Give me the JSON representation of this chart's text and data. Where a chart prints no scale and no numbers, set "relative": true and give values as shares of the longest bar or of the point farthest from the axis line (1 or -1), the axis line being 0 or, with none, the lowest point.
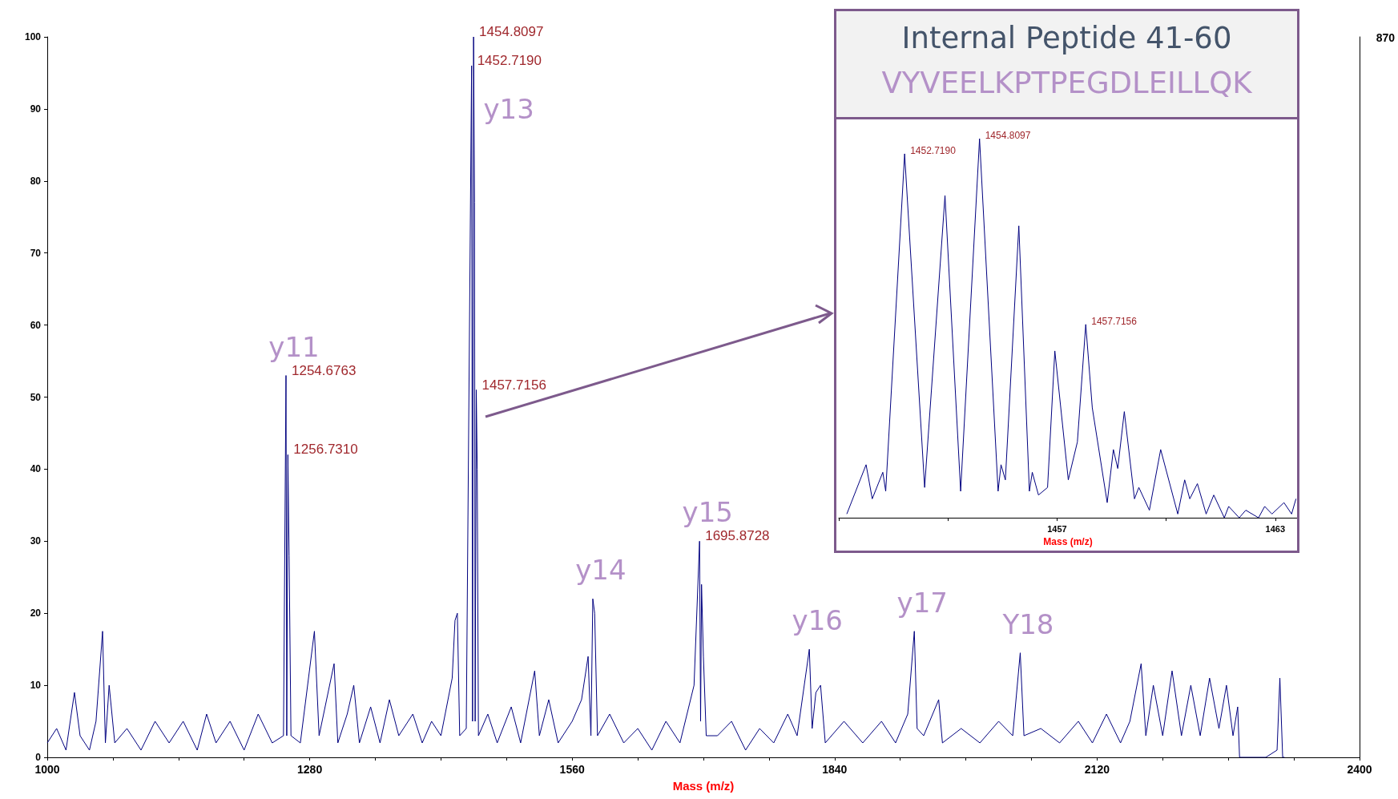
{
  "chart_data": [
    {
      "type": "line",
      "xlabel": "Mass (m/z)",
      "color": "#00007f",
      "marker": "none",
      "grid": false,
      "xlim": [
        1000,
        2400
      ],
      "ylim": [
        0,
        100
      ],
      "xticks": [
        1000,
        {
          "value": 1070,
          "label": null
        },
        {
          "value": 1140,
          "label": null
        },
        {
          "value": 1210,
          "label": null
        },
        1280,
        {
          "value": 1350,
          "label": null
        },
        {
          "value": 1420,
          "label": null
        },
        {
          "value": 1490,
          "label": null
        },
        1560,
        {
          "value": 1630,
          "label": null
        },
        {
          "value": 1700,
          "label": null
        },
        {
          "value": 1770,
          "label": null
        },
        1840,
        {
          "value": 1910,
          "label": null
        },
        {
          "value": 1980,
          "label": null
        },
        {
          "value": 2050,
          "label": null
        },
        2120,
        {
          "value": 2190,
          "label": null
        },
        {
          "value": 2260,
          "label": null
        },
        {
          "value": 2330,
          "label": null
        },
        2400
      ],
      "yticks": [
        0,
        10,
        20,
        30,
        40,
        50,
        60,
        70,
        80,
        90,
        100
      ],
      "x": [
        1000,
        1010,
        1020,
        1029,
        1035,
        1045,
        1052,
        1059,
        1062,
        1066,
        1072,
        1085,
        1100,
        1115,
        1130,
        1145,
        1160,
        1170,
        1180,
        1195,
        1210,
        1225,
        1240,
        1252,
        1254.7,
        1255.5,
        1256.7,
        1258,
        1260,
        1270,
        1285,
        1290,
        1306,
        1310,
        1320,
        1327,
        1333,
        1345,
        1355,
        1365,
        1375,
        1390,
        1400,
        1410,
        1420,
        1432,
        1435,
        1437.5,
        1440,
        1447,
        1452.7,
        1453.7,
        1454.8,
        1455.8,
        1456.5,
        1457.7,
        1458.7,
        1460,
        1470,
        1480,
        1495,
        1505,
        1520,
        1525,
        1535,
        1545,
        1560,
        1570,
        1577,
        1580,
        1582,
        1584,
        1587,
        1600,
        1615,
        1630,
        1645,
        1660,
        1675,
        1690,
        1695.9,
        1697,
        1698,
        1700,
        1703,
        1715,
        1730,
        1745,
        1760,
        1775,
        1790,
        1800,
        1813,
        1816,
        1820,
        1825,
        1830,
        1850,
        1870,
        1890,
        1905,
        1918,
        1925,
        1928,
        1935,
        1951,
        1955,
        1975,
        1995,
        2015,
        2030,
        2038,
        2042,
        2060,
        2080,
        2100,
        2115,
        2130,
        2145,
        2155,
        2167,
        2172,
        2180,
        2190,
        2200,
        2210,
        2220,
        2230,
        2240,
        2250,
        2258,
        2265,
        2270,
        2272,
        2300,
        2312,
        2315,
        2318,
        2320
      ],
      "values": [
        2,
        4,
        1,
        9,
        3,
        1,
        5,
        17.5,
        2,
        10,
        2,
        4,
        1,
        5,
        2,
        5,
        1,
        6,
        2,
        5,
        1,
        6,
        2,
        3,
        53,
        3,
        42,
        28,
        3,
        2,
        17.5,
        3,
        13,
        2,
        6,
        10,
        2,
        7,
        2,
        8,
        3,
        6,
        2,
        5,
        3,
        11,
        19,
        20,
        3,
        4,
        96,
        5,
        100,
        77,
        5,
        51,
        40,
        3,
        6,
        2,
        7,
        2,
        12,
        3,
        8,
        2,
        5,
        8,
        14,
        3,
        22,
        20,
        3,
        6,
        2,
        4,
        1,
        5,
        2,
        10,
        30,
        5,
        24,
        14,
        3,
        3,
        5,
        1,
        4,
        2,
        6,
        3,
        15,
        4,
        9,
        10,
        2,
        5,
        2,
        5,
        2,
        6,
        17.5,
        4,
        3,
        8,
        2,
        4,
        2,
        5,
        3,
        14.5,
        3,
        4,
        2,
        5,
        2,
        6,
        2,
        5,
        13,
        3,
        10,
        3,
        12,
        3,
        10,
        3,
        11,
        4,
        10,
        3,
        7,
        0,
        0,
        1,
        11,
        0,
        0
      ],
      "annotations": [
        {
          "text": "1454.8097",
          "x": 1454.8,
          "y": 100
        },
        {
          "text": "1452.7190",
          "x": 1452.7,
          "y": 96
        },
        {
          "text": "1457.7156",
          "x": 1457.7,
          "y": 51
        },
        {
          "text": "1254.6763",
          "x": 1254.7,
          "y": 53
        },
        {
          "text": "1256.7310",
          "x": 1256.7,
          "y": 42
        },
        {
          "text": "1695.8728",
          "x": 1695.9,
          "y": 30
        },
        {
          "text": "y11",
          "x": 1254.7,
          "y": 53
        },
        {
          "text": "y13",
          "x": 1454.8,
          "y": 100
        },
        {
          "text": "y14",
          "x": 1582,
          "y": 22
        },
        {
          "text": "y15",
          "x": 1695.9,
          "y": 30
        },
        {
          "text": "y16",
          "x": 1813,
          "y": 15
        },
        {
          "text": "y17",
          "x": 1925,
          "y": 17.5
        },
        {
          "text": "Y18",
          "x": 2038,
          "y": 14.5
        },
        "870"
      ]
    },
    {
      "type": "line",
      "title": "Internal Peptide 41-60",
      "subtitle": "VYVEELKPTPEGDLEILLQK",
      "xlabel": "Mass (m/z)",
      "color": "#00007f",
      "marker": "none",
      "grid": false,
      "relative": true,
      "tick_labels": "x",
      "xlim": [
        1451,
        1463.6
      ],
      "xticks": [
        {
          "value": 1451,
          "label": null
        },
        {
          "value": 1454,
          "label": null
        },
        1457,
        {
          "value": 1460,
          "label": null
        },
        1463
      ],
      "x": [
        1451.22,
        1451.75,
        1451.92,
        1452.21,
        1452.29,
        1452.81,
        1453.36,
        1453.92,
        1454.35,
        1454.87,
        1455.38,
        1455.46,
        1455.58,
        1455.95,
        1456.24,
        1456.32,
        1456.49,
        1456.74,
        1456.94,
        1457.31,
        1457.56,
        1457.79,
        1457.97,
        1458.38,
        1458.55,
        1458.67,
        1458.85,
        1459.13,
        1459.25,
        1459.54,
        1459.85,
        1460.32,
        1460.51,
        1460.65,
        1460.86,
        1461.1,
        1461.31,
        1461.6,
        1461.72,
        1462.01,
        1462.19,
        1462.54,
        1462.71,
        1462.91,
        1463.24,
        1463.45,
        1463.57
      ],
      "values": [
        0.01,
        0.14,
        0.05,
        0.12,
        0.07,
        0.96,
        0.08,
        0.85,
        0.07,
        1,
        0.07,
        0.14,
        0.1,
        0.77,
        0.07,
        0.12,
        0.06,
        0.08,
        0.44,
        0.1,
        0.2,
        0.51,
        0.29,
        0.04,
        0.18,
        0.13,
        0.28,
        0.05,
        0.08,
        0.02,
        0.18,
        0.01,
        0.1,
        0.05,
        0.09,
        0.01,
        0.06,
        0,
        0.03,
        0,
        0.02,
        0,
        0.03,
        0.01,
        0.04,
        0.01,
        0.05
      ],
      "annotations": [
        {
          "text": "1452.7190",
          "x": 1452.81,
          "y": 0.96
        },
        {
          "text": "1454.8097",
          "x": 1454.87,
          "y": 1
        },
        {
          "text": "1457.7156",
          "x": 1457.79,
          "y": 0.51
        }
      ]
    }
  ]
}
